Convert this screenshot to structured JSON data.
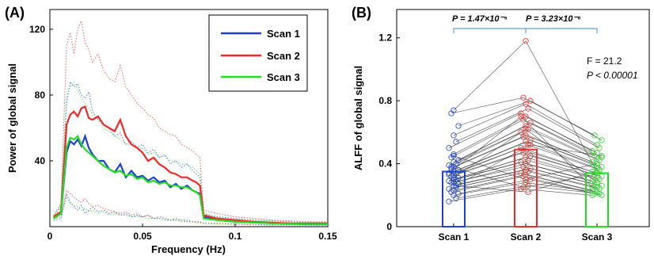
{
  "colors": {
    "scan1": "#1f3fd6",
    "scan2": "#ee2a2a",
    "scan3": "#22dd22",
    "bracket": "#6a9fd0",
    "line": "#333333"
  },
  "chart_data": [
    {
      "type": "line",
      "panel_label": "(A)",
      "xlabel": "Frequency (Hz)",
      "ylabel": "Power of global signal",
      "xlim": [
        0,
        0.15
      ],
      "ylim": [
        0,
        132
      ],
      "xticks": [
        0,
        0.05,
        0.1,
        0.15
      ],
      "xtick_labels": [
        "0",
        "0.05",
        "0.1",
        "0.15"
      ],
      "yticks": [
        40,
        80,
        120
      ],
      "ytick_labels": [
        "40",
        "80",
        "120"
      ],
      "legend_position": "top-right",
      "legend_labels": [
        "Scan 1",
        "Scan 2",
        "Scan 3"
      ],
      "x": [
        0.002,
        0.006,
        0.009,
        0.011,
        0.013,
        0.015,
        0.017,
        0.019,
        0.021,
        0.023,
        0.026,
        0.029,
        0.032,
        0.035,
        0.038,
        0.041,
        0.044,
        0.047,
        0.05,
        0.053,
        0.056,
        0.059,
        0.062,
        0.065,
        0.068,
        0.071,
        0.074,
        0.077,
        0.079,
        0.081,
        0.083,
        0.09,
        0.1,
        0.11,
        0.12,
        0.13,
        0.14,
        0.15
      ],
      "series": [
        {
          "key": "scan1",
          "name": "Scan 1",
          "mean": [
            5,
            8,
            45,
            52,
            50,
            53,
            49,
            55,
            48,
            44,
            40,
            40,
            35,
            33,
            38,
            30,
            34,
            30,
            31,
            28,
            30,
            27,
            28,
            24,
            26,
            23,
            25,
            22,
            21,
            20,
            6,
            4,
            3,
            2.5,
            2,
            1.8,
            1.5,
            1.5
          ],
          "upper": [
            6,
            12,
            75,
            88,
            85,
            87,
            80,
            78,
            82,
            70,
            65,
            62,
            60,
            55,
            57,
            50,
            52,
            48,
            50,
            45,
            47,
            42,
            44,
            38,
            40,
            36,
            38,
            34,
            32,
            30,
            8,
            6,
            5,
            4,
            3.5,
            3,
            2.5,
            2.5
          ],
          "lower": [
            4,
            5,
            20,
            15,
            12,
            10,
            13,
            8,
            10,
            12,
            9,
            10,
            8,
            9,
            7,
            8,
            6,
            7,
            6,
            7,
            5,
            6,
            5,
            4,
            5,
            4,
            4,
            3,
            3,
            3,
            2,
            2,
            1.5,
            1.2,
            1,
            1,
            0.8,
            0.8
          ]
        },
        {
          "key": "scan2",
          "name": "Scan 2",
          "mean": [
            6,
            9,
            62,
            68,
            70,
            67,
            72,
            73,
            66,
            65,
            67,
            62,
            60,
            58,
            65,
            55,
            50,
            48,
            45,
            40,
            42,
            38,
            36,
            33,
            32,
            30,
            30,
            28,
            27,
            25,
            7,
            5,
            4,
            3,
            2.5,
            2,
            2,
            2
          ],
          "upper": [
            7,
            14,
            110,
            118,
            105,
            120,
            125,
            112,
            108,
            100,
            105,
            95,
            90,
            88,
            98,
            85,
            80,
            75,
            72,
            68,
            66,
            60,
            58,
            56,
            55,
            50,
            48,
            46,
            44,
            42,
            10,
            8,
            6,
            5,
            4,
            3.5,
            3,
            3
          ],
          "lower": [
            5,
            6,
            22,
            20,
            18,
            16,
            15,
            17,
            14,
            12,
            13,
            11,
            10,
            9,
            8,
            9,
            7,
            8,
            6,
            7,
            5,
            5,
            4,
            4,
            4,
            3,
            3,
            3,
            2.5,
            2.5,
            2,
            1.8,
            1.5,
            1.2,
            1,
            1,
            1,
            1
          ]
        },
        {
          "key": "scan3",
          "name": "Scan 3",
          "mean": [
            5,
            8,
            48,
            54,
            53,
            55,
            50,
            47,
            45,
            43,
            40,
            37,
            35,
            33,
            34,
            31,
            32,
            29,
            30,
            27,
            28,
            26,
            27,
            25,
            25,
            24,
            24,
            22,
            21,
            19,
            5,
            4,
            3,
            2.5,
            2,
            1.8,
            1.5,
            1.5
          ],
          "upper": [
            6,
            13,
            80,
            85,
            88,
            83,
            78,
            75,
            72,
            68,
            65,
            60,
            58,
            55,
            53,
            50,
            50,
            47,
            48,
            44,
            45,
            42,
            43,
            40,
            40,
            38,
            38,
            36,
            34,
            32,
            8,
            6,
            5,
            4,
            3.5,
            3,
            2.5,
            2.5
          ],
          "lower": [
            4,
            5,
            18,
            14,
            13,
            12,
            10,
            11,
            9,
            10,
            8,
            9,
            7,
            8,
            7,
            7,
            6,
            6,
            6,
            5,
            5,
            5,
            4,
            4,
            4,
            4,
            3,
            3,
            3,
            3,
            2,
            1.8,
            1.5,
            1.2,
            1,
            1,
            0.8,
            0.8
          ]
        }
      ]
    },
    {
      "type": "bar",
      "panel_label": "(B)",
      "xlabel": "",
      "ylabel": "ALFF of global signal",
      "categories": [
        "Scan 1",
        "Scan 2",
        "Scan 3"
      ],
      "values": [
        0.35,
        0.49,
        0.34
      ],
      "ylim": [
        0,
        1.38
      ],
      "yticks": [
        0,
        0.4,
        0.8,
        1.2
      ],
      "ytick_labels": [
        "0",
        "0.4",
        "0.8",
        "1.2"
      ],
      "annotations": {
        "p12": "P = 1.47×10⁻⁵",
        "p23": "P = 3.23×10⁻⁶",
        "f": "F = 21.2",
        "p": "P < 0.00001"
      },
      "subjects": [
        [
          0.74,
          1.18,
          0.35
        ],
        [
          0.72,
          0.82,
          0.58
        ],
        [
          0.64,
          0.8,
          0.55
        ],
        [
          0.58,
          0.78,
          0.52
        ],
        [
          0.54,
          0.75,
          0.5
        ],
        [
          0.5,
          0.72,
          0.48
        ],
        [
          0.46,
          0.7,
          0.47
        ],
        [
          0.44,
          0.68,
          0.45
        ],
        [
          0.42,
          0.66,
          0.44
        ],
        [
          0.41,
          0.64,
          0.43
        ],
        [
          0.4,
          0.62,
          0.42
        ],
        [
          0.39,
          0.6,
          0.41
        ],
        [
          0.38,
          0.58,
          0.4
        ],
        [
          0.37,
          0.57,
          0.39
        ],
        [
          0.36,
          0.55,
          0.38
        ],
        [
          0.35,
          0.54,
          0.37
        ],
        [
          0.34,
          0.52,
          0.36
        ],
        [
          0.33,
          0.5,
          0.35
        ],
        [
          0.33,
          0.48,
          0.34
        ],
        [
          0.32,
          0.47,
          0.33
        ],
        [
          0.31,
          0.45,
          0.32
        ],
        [
          0.3,
          0.44,
          0.31
        ],
        [
          0.3,
          0.42,
          0.3
        ],
        [
          0.29,
          0.41,
          0.29
        ],
        [
          0.28,
          0.4,
          0.28
        ],
        [
          0.28,
          0.38,
          0.27
        ],
        [
          0.27,
          0.37,
          0.26
        ],
        [
          0.26,
          0.36,
          0.25
        ],
        [
          0.25,
          0.35,
          0.24
        ],
        [
          0.24,
          0.34,
          0.23
        ],
        [
          0.23,
          0.33,
          0.22
        ],
        [
          0.22,
          0.32,
          0.21
        ],
        [
          0.21,
          0.3,
          0.2
        ],
        [
          0.2,
          0.28,
          0.22
        ],
        [
          0.18,
          0.26,
          0.21
        ],
        [
          0.16,
          0.24,
          0.2
        ],
        [
          0.45,
          0.3,
          0.4
        ],
        [
          0.38,
          0.25,
          0.33
        ],
        [
          0.27,
          0.52,
          0.45
        ],
        [
          0.31,
          0.62,
          0.28
        ],
        [
          0.26,
          0.22,
          0.36
        ],
        [
          0.34,
          0.7,
          0.25
        ]
      ]
    }
  ]
}
